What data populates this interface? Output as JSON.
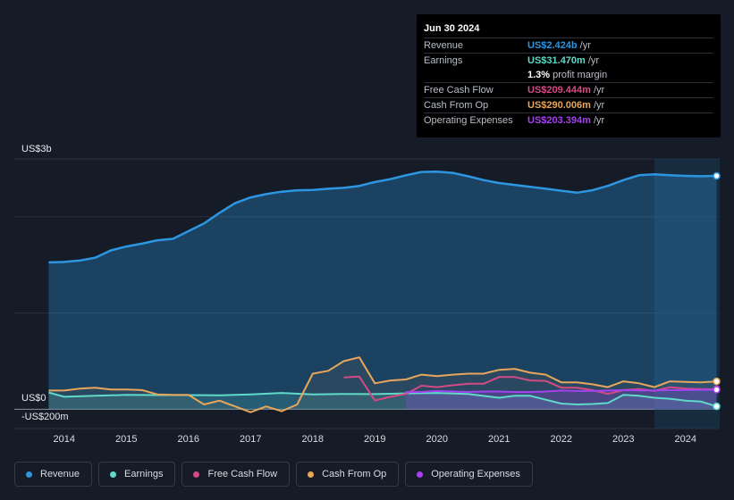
{
  "colors": {
    "revenue": "#2d96e1",
    "earnings": "#5fd9c8",
    "free_cash_flow": "#d44a85",
    "cash_from_op": "#e8a65a",
    "operating_expenses": "#a442f0"
  },
  "tooltip": {
    "date": "Jun 30 2024",
    "rows": [
      {
        "label": "Revenue",
        "value": "US$2.424b",
        "unit": "/yr",
        "color_key": "revenue"
      },
      {
        "label": "Earnings",
        "value": "US$31.470m",
        "unit": "/yr",
        "color_key": "earnings"
      },
      {
        "label": "Free Cash Flow",
        "value": "US$209.444m",
        "unit": "/yr",
        "color_key": "free_cash_flow"
      },
      {
        "label": "Cash From Op",
        "value": "US$290.006m",
        "unit": "/yr",
        "color_key": "cash_from_op"
      },
      {
        "label": "Operating Expenses",
        "value": "US$203.394m",
        "unit": "/yr",
        "color_key": "operating_expenses"
      }
    ],
    "profit_margin": {
      "value": "1.3%",
      "label": "profit margin"
    }
  },
  "chart_data": {
    "type": "line",
    "ylabel_top": "US$3b",
    "ylabel_zero": "US$0",
    "ylabel_bottom": "-US$200m",
    "ylim": [
      -200,
      2600
    ],
    "xlim": [
      2013.6,
      2024.55
    ],
    "x_ticks": [
      "2014",
      "2015",
      "2016",
      "2017",
      "2018",
      "2019",
      "2020",
      "2021",
      "2022",
      "2023",
      "2024"
    ],
    "legend": [
      "Revenue",
      "Earnings",
      "Free Cash Flow",
      "Cash From Op",
      "Operating Expenses"
    ],
    "series": [
      {
        "name": "Revenue",
        "key": "revenue",
        "fill": true,
        "x": [
          2013.75,
          2014.0,
          2014.25,
          2014.5,
          2014.75,
          2015.0,
          2015.25,
          2015.5,
          2015.75,
          2016.0,
          2016.25,
          2016.5,
          2016.75,
          2017.0,
          2017.25,
          2017.5,
          2017.75,
          2018.0,
          2018.25,
          2018.5,
          2018.75,
          2019.0,
          2019.25,
          2019.5,
          2019.75,
          2020.0,
          2020.25,
          2020.5,
          2020.75,
          2021.0,
          2021.25,
          2021.5,
          2021.75,
          2022.0,
          2022.25,
          2022.5,
          2022.75,
          2023.0,
          2023.25,
          2023.5,
          2023.75,
          2024.0,
          2024.25,
          2024.5
        ],
        "values": [
          1525,
          1530,
          1545,
          1575,
          1650,
          1690,
          1720,
          1755,
          1770,
          1850,
          1930,
          2040,
          2140,
          2200,
          2235,
          2260,
          2275,
          2278,
          2290,
          2300,
          2320,
          2360,
          2390,
          2430,
          2465,
          2468,
          2455,
          2420,
          2380,
          2350,
          2330,
          2310,
          2290,
          2270,
          2250,
          2275,
          2320,
          2380,
          2430,
          2440,
          2430,
          2424,
          2420,
          2424
        ]
      },
      {
        "name": "Earnings",
        "key": "earnings",
        "fill": true,
        "x": [
          2013.75,
          2014.0,
          2014.5,
          2015.0,
          2015.5,
          2016.0,
          2016.5,
          2017.0,
          2017.5,
          2018.0,
          2018.5,
          2019.0,
          2019.5,
          2020.0,
          2020.5,
          2021.0,
          2021.25,
          2021.5,
          2022.0,
          2022.25,
          2022.5,
          2022.75,
          2023.0,
          2023.25,
          2023.5,
          2023.75,
          2024.0,
          2024.25,
          2024.5
        ],
        "values": [
          175,
          130,
          140,
          150,
          148,
          148,
          145,
          155,
          170,
          155,
          160,
          158,
          165,
          170,
          160,
          120,
          140,
          140,
          60,
          50,
          55,
          65,
          150,
          140,
          120,
          110,
          90,
          80,
          31
        ]
      },
      {
        "name": "Free Cash Flow",
        "key": "free_cash_flow",
        "fill": false,
        "x": [
          2018.5,
          2018.75,
          2019.0,
          2019.25,
          2019.5,
          2019.75,
          2020.0,
          2020.25,
          2020.5,
          2020.75,
          2021.0,
          2021.25,
          2021.5,
          2021.75,
          2022.0,
          2022.25,
          2022.5,
          2022.75,
          2023.0,
          2023.25,
          2023.5,
          2023.75,
          2024.0,
          2024.25,
          2024.5
        ],
        "values": [
          330,
          340,
          90,
          130,
          160,
          245,
          230,
          250,
          265,
          265,
          335,
          335,
          300,
          295,
          225,
          225,
          200,
          160,
          200,
          210,
          190,
          230,
          215,
          210,
          209
        ]
      },
      {
        "name": "Cash From Op",
        "key": "cash_from_op",
        "fill": true,
        "x": [
          2013.75,
          2014.0,
          2014.25,
          2014.5,
          2014.75,
          2015.0,
          2015.25,
          2015.5,
          2015.75,
          2016.0,
          2016.25,
          2016.5,
          2016.75,
          2017.0,
          2017.25,
          2017.5,
          2017.75,
          2018.0,
          2018.25,
          2018.5,
          2018.75,
          2019.0,
          2019.25,
          2019.5,
          2019.75,
          2020.0,
          2020.25,
          2020.5,
          2020.75,
          2021.0,
          2021.25,
          2021.5,
          2021.75,
          2022.0,
          2022.25,
          2022.5,
          2022.75,
          2023.0,
          2023.25,
          2023.5,
          2023.75,
          2024.0,
          2024.25,
          2024.5
        ],
        "values": [
          195,
          195,
          215,
          225,
          205,
          205,
          200,
          155,
          150,
          150,
          50,
          90,
          30,
          -30,
          30,
          -20,
          50,
          370,
          400,
          500,
          540,
          270,
          300,
          310,
          360,
          345,
          360,
          370,
          370,
          410,
          420,
          380,
          360,
          280,
          280,
          260,
          230,
          290,
          270,
          230,
          290,
          285,
          280,
          290
        ]
      },
      {
        "name": "Operating Expenses",
        "key": "operating_expenses",
        "fill": true,
        "x": [
          2019.5,
          2019.75,
          2020.0,
          2020.25,
          2020.5,
          2020.75,
          2021.0,
          2021.25,
          2021.5,
          2021.75,
          2022.0,
          2022.25,
          2022.5,
          2022.75,
          2023.0,
          2023.25,
          2023.5,
          2023.75,
          2024.0,
          2024.25,
          2024.5
        ],
        "values": [
          180,
          180,
          190,
          185,
          180,
          185,
          185,
          180,
          180,
          185,
          195,
          190,
          190,
          195,
          200,
          195,
          195,
          200,
          200,
          202,
          203
        ]
      }
    ]
  }
}
